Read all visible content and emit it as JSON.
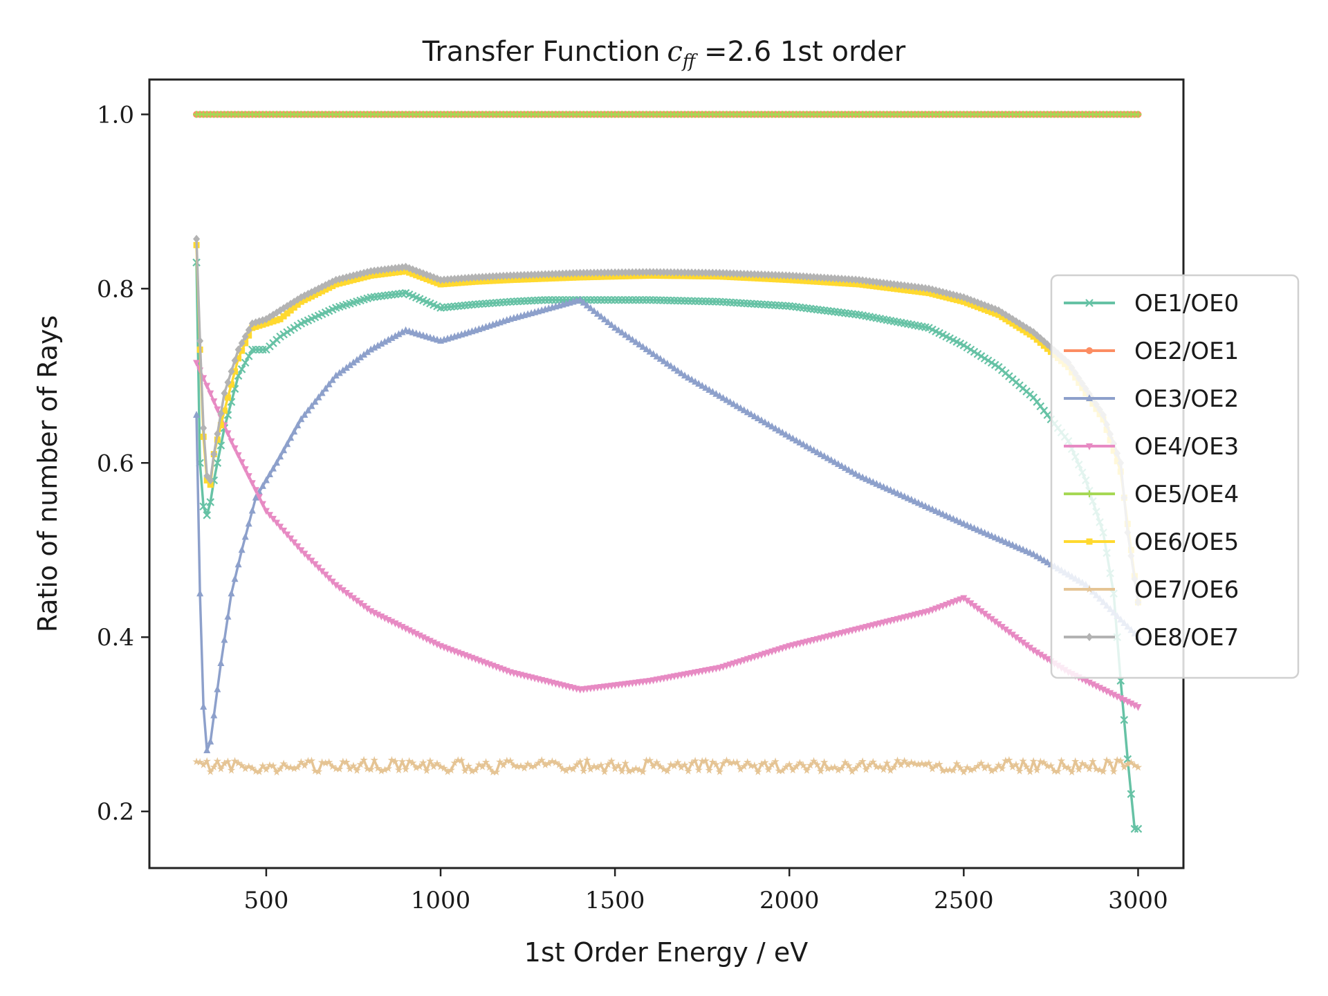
{
  "chart_data": {
    "type": "line",
    "title": "Transfer Function",
    "title_symbol": "c",
    "title_subscript": "ff",
    "title_suffix": " =2.6 1st order",
    "xlabel": "1st Order Energy / eV",
    "ylabel": "Ratio of number of Rays",
    "xlim": [
      165,
      3130
    ],
    "ylim": [
      0.135,
      1.04
    ],
    "x_ticks": [
      500,
      1000,
      1500,
      2000,
      2500,
      3000
    ],
    "y_ticks": [
      0.2,
      0.4,
      0.6,
      0.8,
      1.0
    ],
    "y_tick_labels": [
      "0.2",
      "0.4",
      "0.6",
      "0.8",
      "1.0"
    ],
    "grid": false,
    "legend_position": "right",
    "x_range": [
      300,
      3000
    ],
    "x_step": 10,
    "series": [
      {
        "name": "OE1/OE0",
        "color": "#66c2a5",
        "marker": "x",
        "anchors": [
          [
            300,
            0.83
          ],
          [
            310,
            0.6
          ],
          [
            320,
            0.55
          ],
          [
            330,
            0.54
          ],
          [
            340,
            0.555
          ],
          [
            350,
            0.58
          ],
          [
            380,
            0.64
          ],
          [
            420,
            0.7
          ],
          [
            460,
            0.73
          ],
          [
            500,
            0.73
          ],
          [
            540,
            0.745
          ],
          [
            600,
            0.76
          ],
          [
            700,
            0.778
          ],
          [
            800,
            0.79
          ],
          [
            900,
            0.795
          ],
          [
            1000,
            0.778
          ],
          [
            1100,
            0.782
          ],
          [
            1200,
            0.785
          ],
          [
            1300,
            0.787
          ],
          [
            1400,
            0.787
          ],
          [
            1600,
            0.787
          ],
          [
            1800,
            0.785
          ],
          [
            2000,
            0.78
          ],
          [
            2200,
            0.77
          ],
          [
            2400,
            0.755
          ],
          [
            2500,
            0.735
          ],
          [
            2600,
            0.71
          ],
          [
            2700,
            0.675
          ],
          [
            2800,
            0.625
          ],
          [
            2850,
            0.58
          ],
          [
            2900,
            0.52
          ],
          [
            2930,
            0.45
          ],
          [
            2950,
            0.35
          ],
          [
            2970,
            0.26
          ],
          [
            2990,
            0.18
          ]
        ]
      },
      {
        "name": "OE2/OE1",
        "color": "#fc8d62",
        "marker": "o",
        "anchors": [
          [
            300,
            1.0
          ],
          [
            3000,
            1.0
          ]
        ]
      },
      {
        "name": "OE3/OE2",
        "color": "#8da0cb",
        "marker": "^",
        "anchors": [
          [
            300,
            0.655
          ],
          [
            310,
            0.45
          ],
          [
            320,
            0.32
          ],
          [
            330,
            0.27
          ],
          [
            340,
            0.28
          ],
          [
            350,
            0.31
          ],
          [
            370,
            0.37
          ],
          [
            400,
            0.45
          ],
          [
            430,
            0.5
          ],
          [
            470,
            0.56
          ],
          [
            500,
            0.58
          ],
          [
            530,
            0.6
          ],
          [
            600,
            0.65
          ],
          [
            700,
            0.7
          ],
          [
            800,
            0.73
          ],
          [
            900,
            0.752
          ],
          [
            1000,
            0.74
          ],
          [
            1100,
            0.752
          ],
          [
            1200,
            0.765
          ],
          [
            1300,
            0.776
          ],
          [
            1400,
            0.787
          ],
          [
            1500,
            0.755
          ],
          [
            1700,
            0.7
          ],
          [
            2000,
            0.63
          ],
          [
            2200,
            0.585
          ],
          [
            2500,
            0.53
          ],
          [
            2700,
            0.495
          ],
          [
            2850,
            0.46
          ],
          [
            3000,
            0.4
          ]
        ]
      },
      {
        "name": "OE4/OE3",
        "color": "#e78ac3",
        "marker": "v",
        "anchors": [
          [
            300,
            0.715
          ],
          [
            340,
            0.68
          ],
          [
            400,
            0.625
          ],
          [
            500,
            0.545
          ],
          [
            600,
            0.5
          ],
          [
            700,
            0.46
          ],
          [
            800,
            0.43
          ],
          [
            900,
            0.41
          ],
          [
            1000,
            0.39
          ],
          [
            1100,
            0.375
          ],
          [
            1200,
            0.36
          ],
          [
            1300,
            0.35
          ],
          [
            1400,
            0.34
          ],
          [
            1600,
            0.35
          ],
          [
            1800,
            0.365
          ],
          [
            2000,
            0.39
          ],
          [
            2200,
            0.41
          ],
          [
            2400,
            0.43
          ],
          [
            2500,
            0.445
          ],
          [
            2600,
            0.415
          ],
          [
            2700,
            0.385
          ],
          [
            2800,
            0.36
          ],
          [
            2900,
            0.34
          ],
          [
            3000,
            0.32
          ]
        ]
      },
      {
        "name": "OE5/OE4",
        "color": "#a6d854",
        "marker": "+",
        "anchors": [
          [
            300,
            1.0
          ],
          [
            3000,
            1.0
          ]
        ]
      },
      {
        "name": "OE6/OE5",
        "color": "#ffd92f",
        "marker": "s",
        "anchors": [
          [
            300,
            0.85
          ],
          [
            310,
            0.73
          ],
          [
            320,
            0.63
          ],
          [
            330,
            0.58
          ],
          [
            340,
            0.575
          ],
          [
            350,
            0.61
          ],
          [
            380,
            0.66
          ],
          [
            420,
            0.72
          ],
          [
            460,
            0.755
          ],
          [
            500,
            0.76
          ],
          [
            540,
            0.765
          ],
          [
            600,
            0.785
          ],
          [
            700,
            0.805
          ],
          [
            800,
            0.815
          ],
          [
            900,
            0.82
          ],
          [
            1000,
            0.805
          ],
          [
            1100,
            0.808
          ],
          [
            1200,
            0.81
          ],
          [
            1400,
            0.813
          ],
          [
            1600,
            0.815
          ],
          [
            1800,
            0.814
          ],
          [
            2000,
            0.81
          ],
          [
            2200,
            0.805
          ],
          [
            2400,
            0.795
          ],
          [
            2500,
            0.785
          ],
          [
            2600,
            0.77
          ],
          [
            2700,
            0.745
          ],
          [
            2800,
            0.71
          ],
          [
            2900,
            0.65
          ],
          [
            2950,
            0.59
          ],
          [
            3000,
            0.44
          ]
        ]
      },
      {
        "name": "OE7/OE6",
        "color": "#e5c494",
        "marker": "*",
        "noise": 0.007,
        "anchors": [
          [
            300,
            0.252
          ],
          [
            3000,
            0.252
          ]
        ]
      },
      {
        "name": "OE8/OE7",
        "color": "#b3b3b3",
        "marker": "D",
        "anchors": [
          [
            300,
            0.857
          ],
          [
            310,
            0.74
          ],
          [
            320,
            0.64
          ],
          [
            330,
            0.585
          ],
          [
            340,
            0.58
          ],
          [
            350,
            0.61
          ],
          [
            380,
            0.68
          ],
          [
            420,
            0.73
          ],
          [
            460,
            0.76
          ],
          [
            500,
            0.765
          ],
          [
            540,
            0.775
          ],
          [
            600,
            0.79
          ],
          [
            700,
            0.81
          ],
          [
            800,
            0.82
          ],
          [
            900,
            0.825
          ],
          [
            1000,
            0.81
          ],
          [
            1100,
            0.813
          ],
          [
            1200,
            0.815
          ],
          [
            1400,
            0.818
          ],
          [
            1600,
            0.819
          ],
          [
            1800,
            0.818
          ],
          [
            2000,
            0.815
          ],
          [
            2200,
            0.81
          ],
          [
            2400,
            0.8
          ],
          [
            2500,
            0.79
          ],
          [
            2600,
            0.775
          ],
          [
            2700,
            0.75
          ],
          [
            2800,
            0.715
          ],
          [
            2900,
            0.655
          ],
          [
            2950,
            0.6
          ],
          [
            2970,
            0.52
          ],
          [
            3000,
            0.44
          ]
        ]
      }
    ]
  }
}
